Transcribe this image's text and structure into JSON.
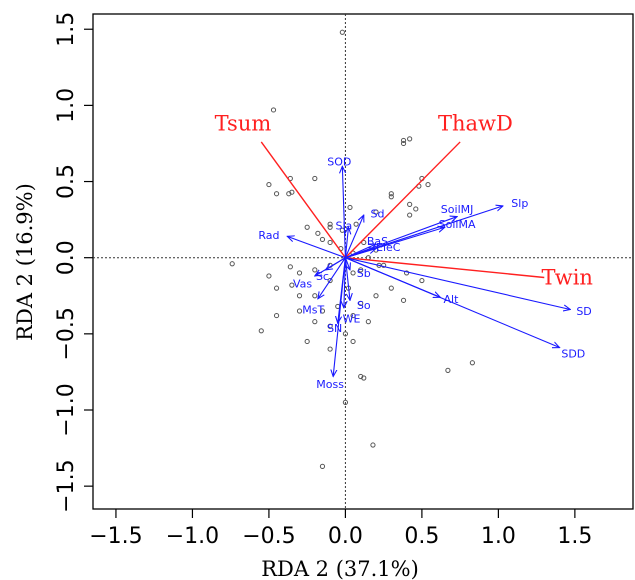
{
  "chart_data": {
    "type": "scatter",
    "title": "",
    "xlabel": "RDA 2 (37.1%)",
    "ylabel": "RDA 2 (16.9%)",
    "xlim": [
      -1.65,
      1.88
    ],
    "ylim": [
      -1.65,
      1.6
    ],
    "xticks": [
      -1.5,
      -1.0,
      -0.5,
      0.0,
      0.5,
      1.0,
      1.5
    ],
    "yticks": [
      -1.5,
      -1.0,
      -0.5,
      0.0,
      0.5,
      1.0,
      1.5
    ],
    "tick_labels": [
      "−1.5",
      "−1.0",
      "−0.5",
      "0.0",
      "0.5",
      "1.0",
      "1.5"
    ],
    "grid": false,
    "reference_lines": [
      0,
      0
    ],
    "colors": {
      "points": "#555555",
      "env": "#ff2020",
      "species": "#1a1aff"
    },
    "sites": [
      [
        -0.02,
        1.48
      ],
      [
        -0.47,
        0.97
      ],
      [
        0.38,
        0.77
      ],
      [
        0.42,
        0.78
      ],
      [
        0.38,
        0.75
      ],
      [
        -0.36,
        0.52
      ],
      [
        -0.2,
        0.52
      ],
      [
        -0.5,
        0.48
      ],
      [
        -0.35,
        0.43
      ],
      [
        0.3,
        0.42
      ],
      [
        0.5,
        0.52
      ],
      [
        0.54,
        0.48
      ],
      [
        0.48,
        0.47
      ],
      [
        0.3,
        0.4
      ],
      [
        -0.45,
        0.42
      ],
      [
        -0.37,
        0.42
      ],
      [
        -0.1,
        0.22
      ],
      [
        -0.1,
        0.2
      ],
      [
        0.03,
        0.33
      ],
      [
        0.2,
        0.3
      ],
      [
        0.07,
        0.22
      ],
      [
        -0.02,
        0.18
      ],
      [
        0.42,
        0.35
      ],
      [
        0.46,
        0.32
      ],
      [
        0.42,
        0.28
      ],
      [
        -0.25,
        0.2
      ],
      [
        -0.18,
        0.16
      ],
      [
        -0.15,
        0.12
      ],
      [
        -0.1,
        0.1
      ],
      [
        -0.03,
        0.06
      ],
      [
        0.05,
        0.03
      ],
      [
        0.12,
        0.1
      ],
      [
        0.2,
        0.05
      ],
      [
        0.15,
        0.0
      ],
      [
        0.22,
        -0.05
      ],
      [
        -0.74,
        -0.04
      ],
      [
        -0.36,
        -0.06
      ],
      [
        -0.3,
        -0.1
      ],
      [
        -0.2,
        -0.08
      ],
      [
        -0.1,
        -0.05
      ],
      [
        0.05,
        -0.1
      ],
      [
        0.1,
        -0.08
      ],
      [
        0.25,
        -0.05
      ],
      [
        0.4,
        -0.1
      ],
      [
        0.5,
        -0.15
      ],
      [
        -0.5,
        -0.12
      ],
      [
        -0.45,
        -0.2
      ],
      [
        -0.35,
        -0.18
      ],
      [
        -0.3,
        -0.25
      ],
      [
        -0.2,
        -0.25
      ],
      [
        -0.1,
        -0.15
      ],
      [
        0.02,
        -0.2
      ],
      [
        0.1,
        -0.3
      ],
      [
        0.2,
        -0.25
      ],
      [
        0.3,
        -0.2
      ],
      [
        0.38,
        -0.28
      ],
      [
        -0.45,
        -0.38
      ],
      [
        -0.3,
        -0.35
      ],
      [
        -0.15,
        -0.35
      ],
      [
        -0.05,
        -0.32
      ],
      [
        0.05,
        -0.38
      ],
      [
        0.15,
        -0.42
      ],
      [
        -0.2,
        -0.42
      ],
      [
        -0.1,
        -0.45
      ],
      [
        0.0,
        -0.5
      ],
      [
        -0.55,
        -0.48
      ],
      [
        -0.25,
        -0.55
      ],
      [
        -0.1,
        -0.6
      ],
      [
        0.05,
        -0.55
      ],
      [
        0.83,
        -0.69
      ],
      [
        0.67,
        -0.74
      ],
      [
        0.1,
        -0.78
      ],
      [
        0.12,
        -0.79
      ],
      [
        0.0,
        -0.95
      ],
      [
        0.18,
        -1.23
      ],
      [
        -0.15,
        -1.37
      ]
    ],
    "environment": [
      {
        "name": "Tsum",
        "x": -0.55,
        "y": 0.76,
        "lx": -0.67,
        "ly": 0.88
      },
      {
        "name": "ThawD",
        "x": 0.75,
        "y": 0.76,
        "lx": 0.85,
        "ly": 0.88
      },
      {
        "name": "Twin",
        "x": 1.3,
        "y": -0.13,
        "lx": 1.45,
        "ly": -0.13
      }
    ],
    "species": [
      {
        "name": "SOD",
        "x": -0.02,
        "y": 0.6,
        "lx": -0.04,
        "ly": 0.63
      },
      {
        "name": "Sd",
        "x": 0.12,
        "y": 0.28,
        "lx": 0.21,
        "ly": 0.29
      },
      {
        "name": "Sla",
        "x": 0.02,
        "y": 0.2,
        "lx": -0.01,
        "ly": 0.21
      },
      {
        "name": "SoilMJ",
        "x": 0.73,
        "y": 0.27,
        "lx": 0.73,
        "ly": 0.32
      },
      {
        "name": "Slp",
        "x": 1.03,
        "y": 0.34,
        "lx": 1.14,
        "ly": 0.36
      },
      {
        "name": "SoilMA",
        "x": 0.65,
        "y": 0.2,
        "lx": 0.73,
        "ly": 0.22
      },
      {
        "name": "Rad",
        "x": -0.38,
        "y": 0.14,
        "lx": -0.5,
        "ly": 0.15
      },
      {
        "name": "BaS",
        "x": 0.2,
        "y": 0.09,
        "lx": 0.21,
        "ly": 0.11
      },
      {
        "name": "EleC",
        "x": 0.2,
        "y": 0.06,
        "lx": 0.28,
        "ly": 0.07
      },
      {
        "name": "Vas",
        "x": -0.2,
        "y": -0.12,
        "lx": -0.28,
        "ly": -0.17
      },
      {
        "name": "Sc",
        "x": -0.13,
        "y": -0.08,
        "lx": -0.15,
        "ly": -0.12
      },
      {
        "name": "Sb",
        "x": 0.03,
        "y": -0.08,
        "lx": 0.12,
        "ly": -0.1
      },
      {
        "name": "Alt",
        "x": 0.62,
        "y": -0.26,
        "lx": 0.69,
        "ly": -0.27
      },
      {
        "name": "SD",
        "x": 1.47,
        "y": -0.34,
        "lx": 1.56,
        "ly": -0.35
      },
      {
        "name": "SDD",
        "x": 1.4,
        "y": -0.59,
        "lx": 1.49,
        "ly": -0.63
      },
      {
        "name": "MsT",
        "x": -0.18,
        "y": -0.27,
        "lx": -0.21,
        "ly": -0.34
      },
      {
        "name": "So",
        "x": 0.03,
        "y": -0.28,
        "lx": 0.12,
        "ly": -0.31
      },
      {
        "name": "WE",
        "x": -0.01,
        "y": -0.33,
        "lx": 0.04,
        "ly": -0.4
      },
      {
        "name": "SN",
        "x": -0.05,
        "y": -0.43,
        "lx": -0.07,
        "ly": -0.46
      },
      {
        "name": "Moss",
        "x": -0.08,
        "y": -0.78,
        "lx": -0.1,
        "ly": -0.83
      }
    ]
  }
}
